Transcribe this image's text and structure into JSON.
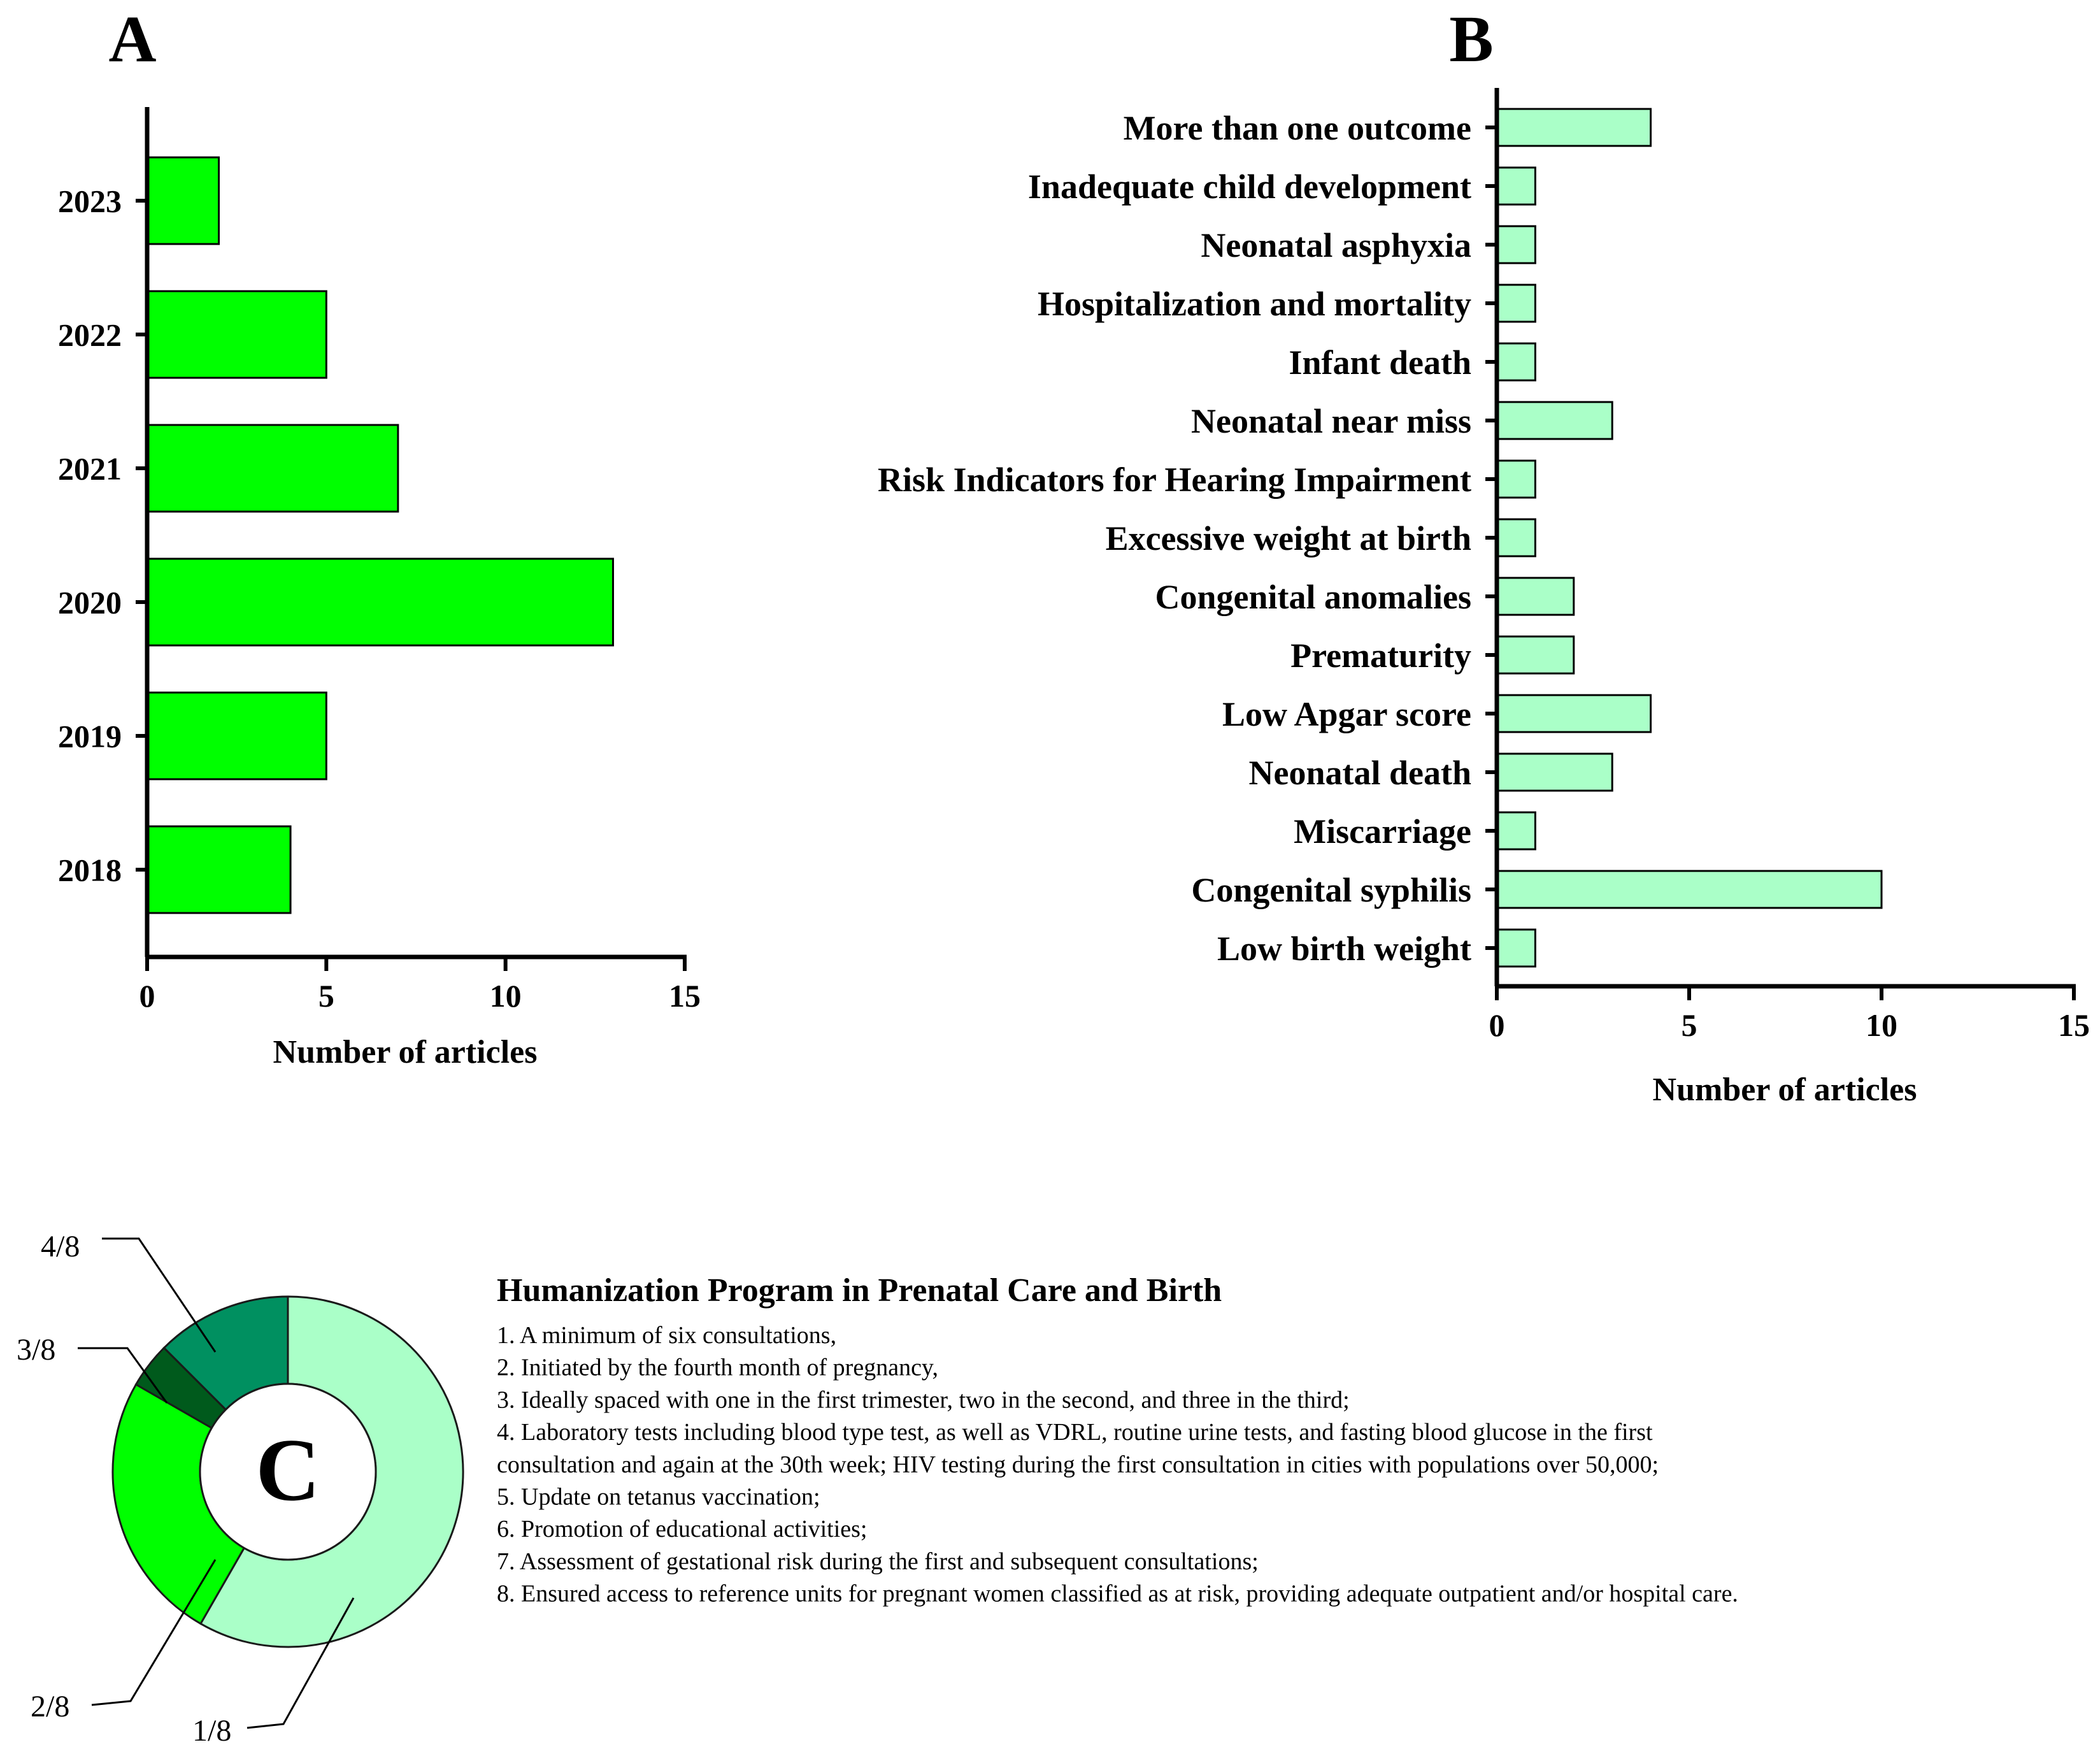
{
  "chart_data": [
    {
      "panel": "A",
      "type": "bar",
      "orientation": "horizontal",
      "categories": [
        "2023",
        "2022",
        "2021",
        "2020",
        "2019",
        "2018"
      ],
      "values": [
        2,
        5,
        7,
        13,
        5,
        4
      ],
      "xlabel": "Number of articles",
      "ylabel": "",
      "xlim": [
        0,
        15
      ],
      "xticks": [
        "0",
        "5",
        "10",
        "15"
      ],
      "bar_color": "#00ff00"
    },
    {
      "panel": "B",
      "type": "bar",
      "orientation": "horizontal",
      "categories": [
        "More than one outcome",
        "Inadequate child development",
        "Neonatal asphyxia",
        "Hospitalization and mortality",
        "Infant death",
        "Neonatal near miss",
        "Risk Indicators for Hearing Impairment",
        "Excessive weight at birth",
        "Congenital anomalies",
        "Prematurity",
        "Low Apgar score",
        "Neonatal death",
        "Miscarriage",
        "Congenital syphilis",
        "Low birth weight"
      ],
      "values": [
        4,
        1,
        1,
        1,
        1,
        3,
        1,
        1,
        2,
        2,
        4,
        3,
        1,
        10,
        1
      ],
      "xlabel": "Number of articles",
      "ylabel": "",
      "xlim": [
        0,
        15
      ],
      "xticks": [
        "0",
        "5",
        "10",
        "15"
      ],
      "bar_color": "#aaffc8"
    },
    {
      "panel": "C",
      "type": "pie",
      "style": "donut",
      "center_label": "C",
      "slices": [
        {
          "label": "1/8",
          "value": 0.583,
          "color": "#aaffc8"
        },
        {
          "label": "2/8",
          "value": 0.25,
          "color": "#00ff00"
        },
        {
          "label": "3/8",
          "value": 0.042,
          "color": "#005a1c"
        },
        {
          "label": "4/8",
          "value": 0.125,
          "color": "#009060"
        }
      ],
      "legend": {
        "title": "Humanization Program in Prenatal Care and Birth",
        "lines": [
          "1. A minimum of six consultations,",
          "2. Initiated by the fourth month of pregnancy,",
          "3. Ideally spaced with one in the first trimester, two in the second, and three in the third;",
          "4. Laboratory tests including blood type test, as well as VDRL, routine urine tests, and fasting blood glucose in the first",
          "consultation and again at the 30th week; HIV testing during the first consultation in cities with populations over 50,000;",
          "5. Update on tetanus vaccination;",
          "6. Promotion of educational activities;",
          "7. Assessment of gestational risk during the first and subsequent consultations;",
          "8. Ensured access to reference units for pregnant women classified as at risk, providing adequate outpatient and/or hospital care."
        ]
      }
    }
  ]
}
